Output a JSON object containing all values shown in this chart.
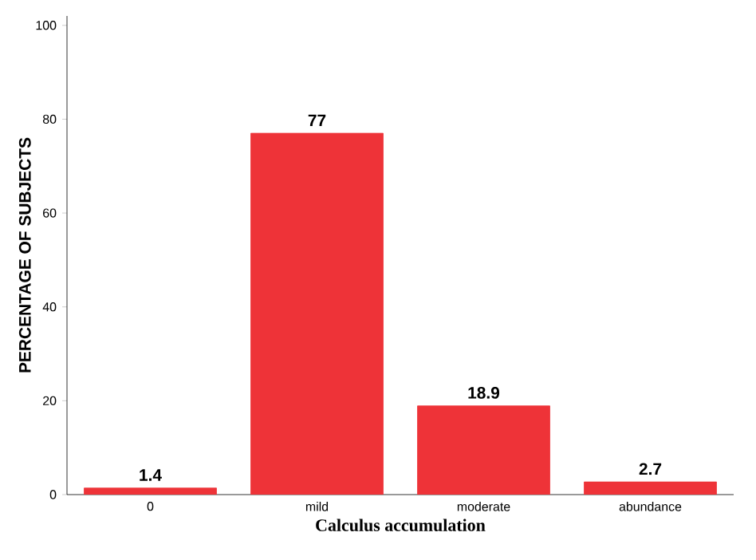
{
  "chart_data": {
    "type": "bar",
    "xlabel": "Calculus accumulation",
    "ylabel": "PERCENTAGE OF SUBJECTS",
    "categories": [
      "0",
      "mild",
      "moderate",
      "abundance"
    ],
    "values": [
      1.4,
      77,
      18.9,
      2.7
    ],
    "color": "#ee3338",
    "ylim": [
      0,
      102
    ],
    "yticks": [
      0,
      20,
      40,
      60,
      80,
      100
    ],
    "data_labels": true
  }
}
